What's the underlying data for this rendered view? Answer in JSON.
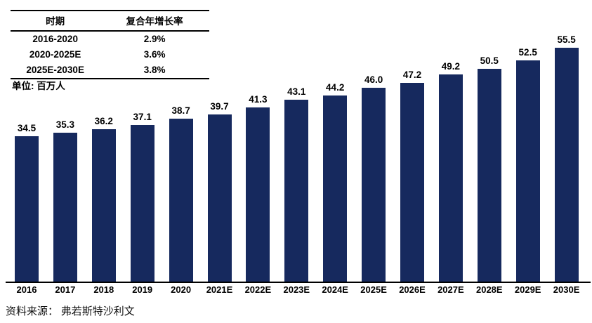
{
  "cagr_table": {
    "headers": [
      "时期",
      "复合年增长率"
    ],
    "rows": [
      {
        "period": "2016-2020",
        "cagr": "2.9%"
      },
      {
        "period": "2020-2025E",
        "cagr": "3.6%"
      },
      {
        "period": "2025E-2030E",
        "cagr": "3.8%"
      }
    ]
  },
  "unit_label": "单位: 百万人",
  "source_note": "资料来源： 弗若斯特沙利文",
  "colors": {
    "bar": "#16295E",
    "axis": "#000000",
    "text": "#000000"
  },
  "chart_data": {
    "type": "bar",
    "title": "",
    "xlabel": "",
    "ylabel": "百万人",
    "categories": [
      "2016",
      "2017",
      "2018",
      "2019",
      "2020",
      "2021E",
      "2022E",
      "2023E",
      "2024E",
      "2025E",
      "2026E",
      "2027E",
      "2028E",
      "2029E",
      "2030E"
    ],
    "values": [
      34.5,
      35.3,
      36.2,
      37.1,
      38.7,
      39.7,
      41.3,
      43.1,
      44.2,
      46.0,
      47.2,
      49.2,
      50.5,
      52.5,
      55.5
    ],
    "value_label_format": "one_decimal",
    "bar_color": "#16295E",
    "ylim": [
      0,
      60
    ],
    "grid": false,
    "legend": "none",
    "annotations": {
      "cagr_2016_2020": "2.9%",
      "cagr_2020_2025E": "3.6%",
      "cagr_2025E_2030E": "3.8%"
    }
  }
}
